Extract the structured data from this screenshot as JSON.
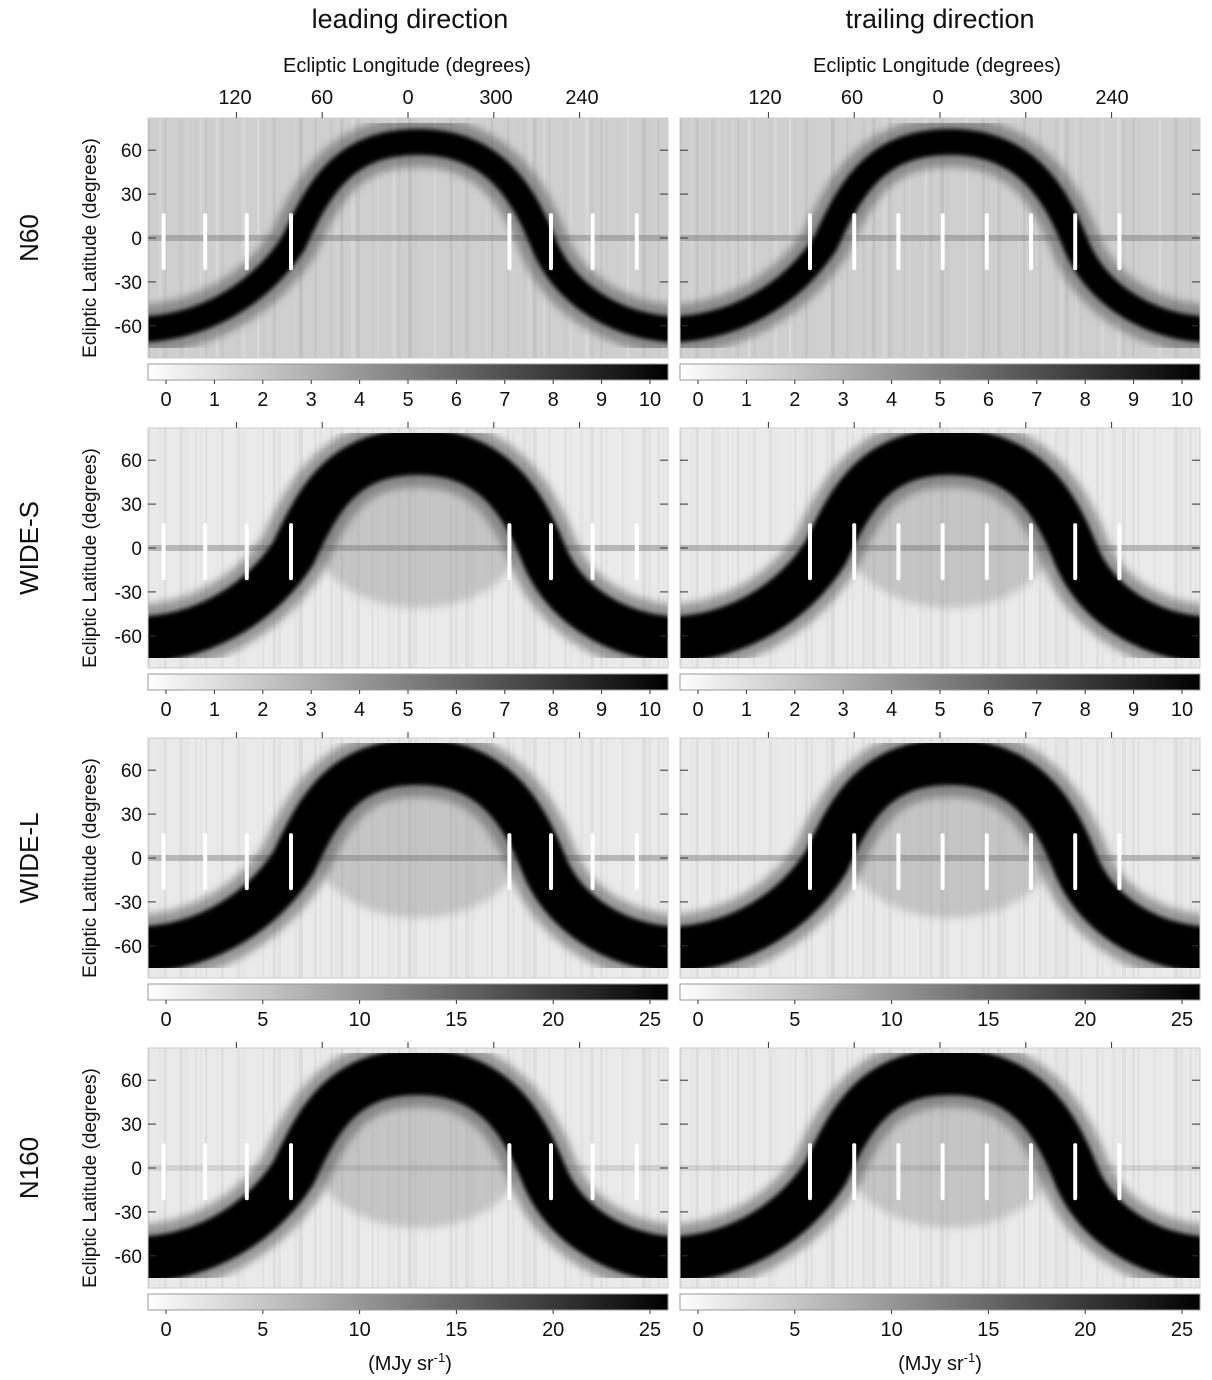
{
  "figure": {
    "columns": [
      {
        "title": "leading direction",
        "xlabel": "Ecliptic Longitude (degrees)"
      },
      {
        "title": "trailing direction",
        "xlabel": "Ecliptic Longitude (degrees)"
      }
    ],
    "longitude_ticks": [
      "120",
      "60",
      "0",
      "300",
      "240"
    ],
    "latitude_ticks": [
      "60",
      "30",
      "0",
      "-30",
      "-60"
    ],
    "ylabel": "Ecliptic Latitude (degrees)",
    "unit_label": "(MJy sr",
    "unit_sup": "-1",
    "unit_close": ")"
  },
  "chart_data": {
    "type": "heatmap",
    "description_values": "all-sky ecliptic maps, grayscale, darker = brighter surface brightness",
    "rows": [
      {
        "band": "N60",
        "colorbar": {
          "min": 0,
          "max": 10,
          "ticks": [
            "0",
            "1",
            "2",
            "3",
            "4",
            "5",
            "6",
            "7",
            "8",
            "9",
            "10"
          ]
        }
      },
      {
        "band": "WIDE-S",
        "colorbar": {
          "min": 0,
          "max": 10,
          "ticks": [
            "0",
            "1",
            "2",
            "3",
            "4",
            "5",
            "6",
            "7",
            "8",
            "9",
            "10"
          ]
        }
      },
      {
        "band": "WIDE-L",
        "colorbar": {
          "min": 0,
          "max": 25,
          "ticks": [
            "0",
            "5",
            "10",
            "15",
            "20",
            "25"
          ]
        }
      },
      {
        "band": "N160",
        "colorbar": {
          "min": 0,
          "max": 25,
          "ticks": [
            "0",
            "5",
            "10",
            "15",
            "20",
            "25"
          ]
        }
      }
    ],
    "colormap": {
      "low": "#ffffff",
      "high": "#000000"
    }
  }
}
